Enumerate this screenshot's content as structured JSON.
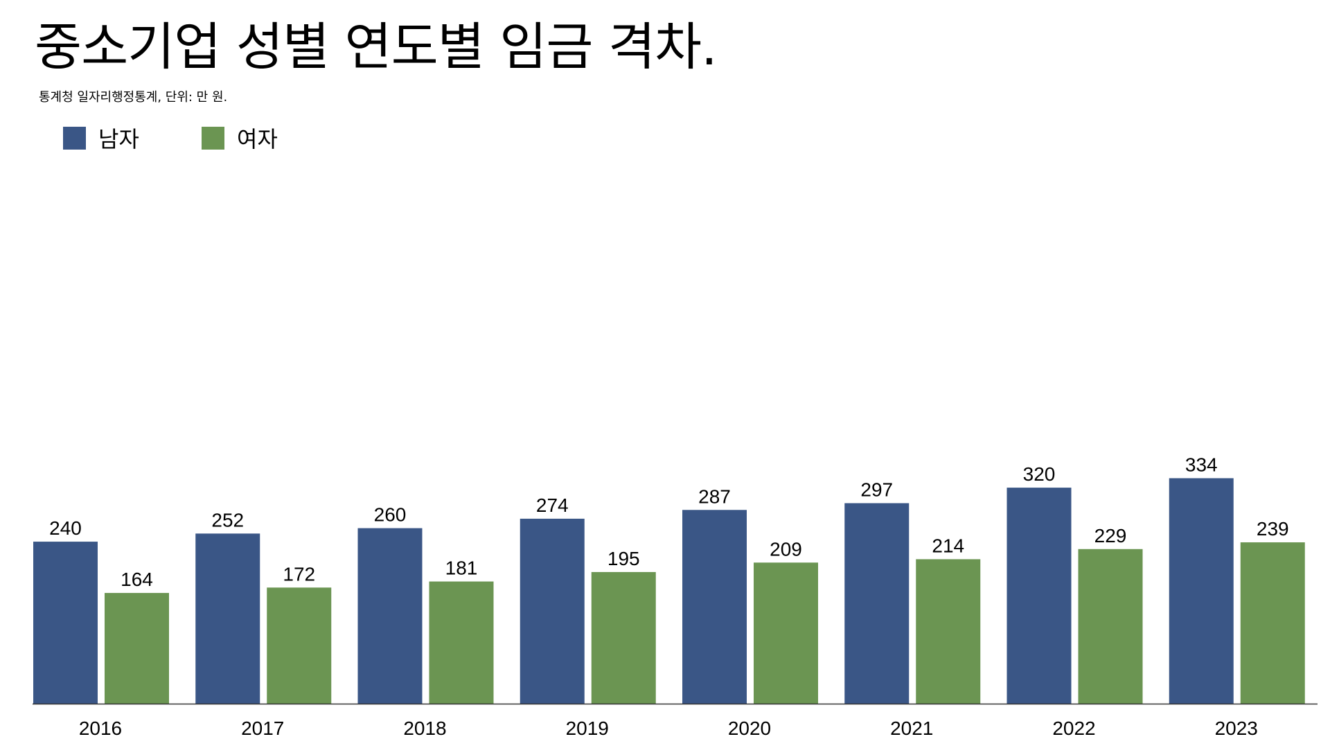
{
  "title": "중소기업 성별 연도별 임금 격차.",
  "subtitle": "통계청 일자리행정통계, 단위: 만 원.",
  "colors": {
    "male": "#3a5686",
    "female": "#6b9552",
    "axis": "#333333"
  },
  "legend": {
    "male": "남자",
    "female": "여자"
  },
  "chart_data": {
    "type": "bar",
    "title": "중소기업 성별 연도별 임금 격차.",
    "subtitle": "통계청 일자리행정통계, 단위: 만 원.",
    "categories": [
      "2016",
      "2017",
      "2018",
      "2019",
      "2020",
      "2021",
      "2022",
      "2023"
    ],
    "series": [
      {
        "name": "남자",
        "values": [
          240,
          252,
          260,
          274,
          287,
          297,
          320,
          334
        ]
      },
      {
        "name": "여자",
        "values": [
          164,
          172,
          181,
          195,
          209,
          214,
          229,
          239
        ]
      }
    ],
    "ylim": [
      0,
      840
    ],
    "grid": false,
    "legend_position": "top-left",
    "data_labels": true
  }
}
